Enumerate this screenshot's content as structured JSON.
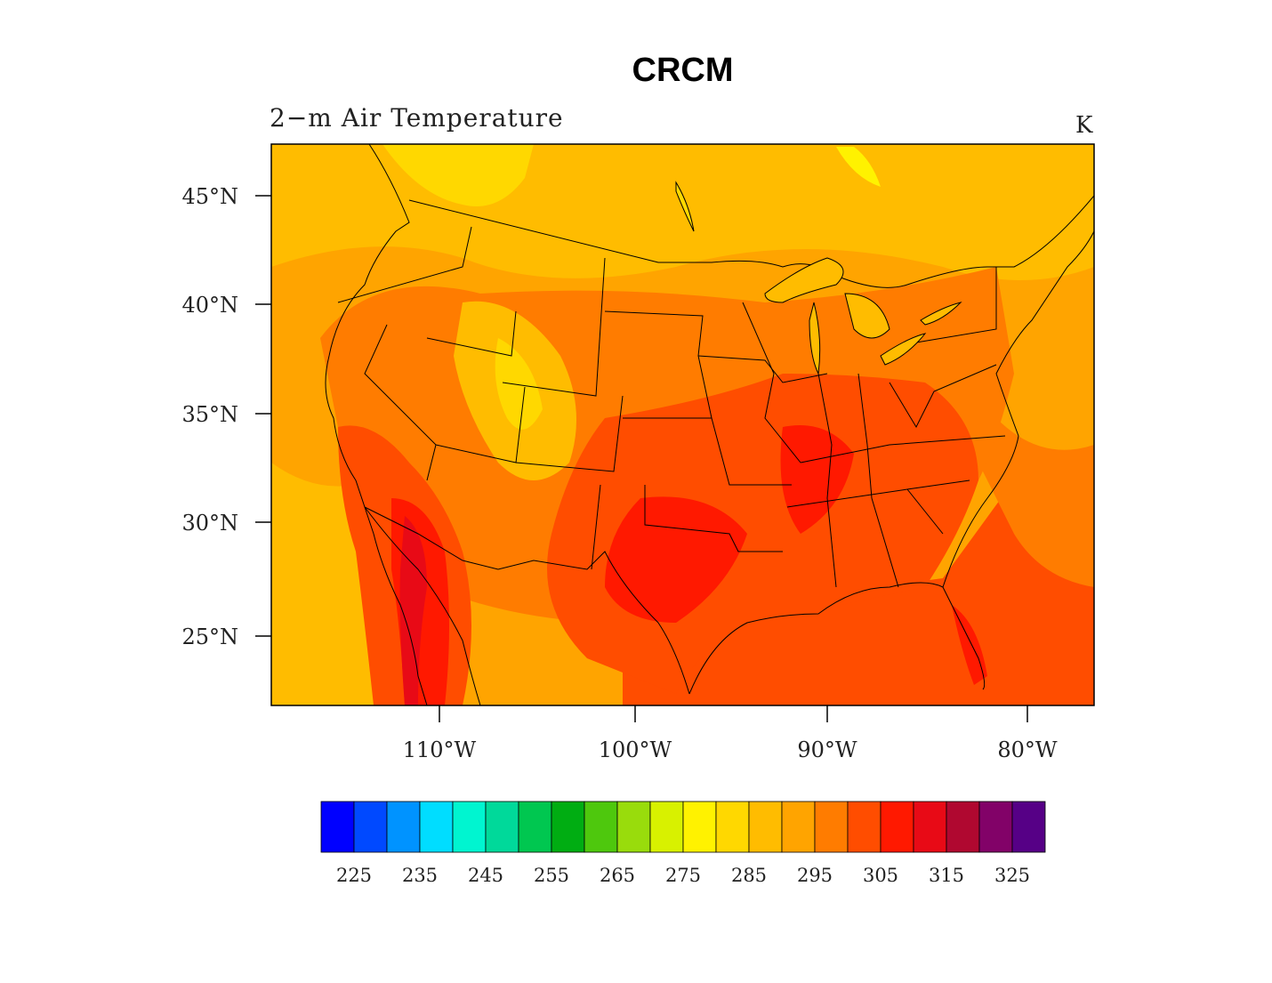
{
  "title": "CRCM",
  "subtitle": "2−m Air Temperature",
  "units": "K",
  "lat_labels": [
    "45°N",
    "40°N",
    "35°N",
    "30°N",
    "25°N"
  ],
  "lon_labels": [
    "110°W",
    "100°W",
    "90°W",
    "80°W"
  ],
  "colorbar": {
    "colors": [
      "#0000ff",
      "#0049ff",
      "#0093ff",
      "#00ddff",
      "#00f5d0",
      "#00d99a",
      "#00c750",
      "#00ad12",
      "#4ec80d",
      "#99dc0c",
      "#d8f100",
      "#fff200",
      "#ffd800",
      "#ffbc00",
      "#ffa400",
      "#ff7c00",
      "#ff4d00",
      "#ff1900",
      "#e80a16",
      "#b00830",
      "#820268",
      "#560086"
    ],
    "labels": [
      "225",
      "235",
      "245",
      "255",
      "265",
      "275",
      "285",
      "295",
      "305",
      "315",
      "325"
    ]
  },
  "palette": {
    "ocean_west": "#ffa400",
    "ocean_north": "#ffbc00",
    "ocean_south": "#ff4d00",
    "warm": "#ff7c00",
    "hot": "#ff1900",
    "hottest": "#e80a16",
    "cool": "#ffd800"
  }
}
